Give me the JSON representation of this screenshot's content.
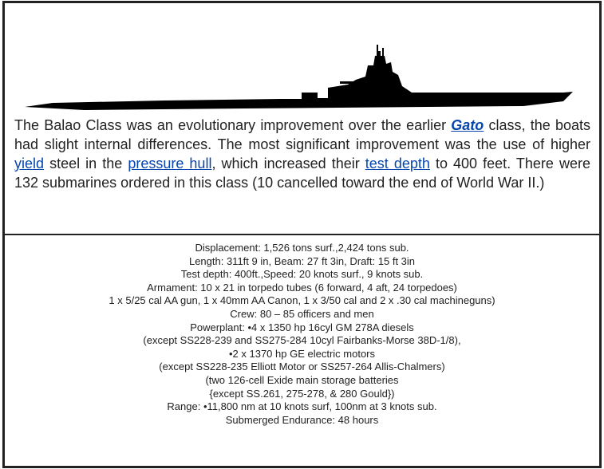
{
  "description": [
    "The Balao Class was an evolutionary improvement over the earlier ",
    "Gato",
    " class, the boats had slight internal differences. The most significant improvement was the use of higher ",
    "yield",
    " steel in the ",
    "pressure hull",
    ", which increased their ",
    "test depth",
    " to 400 feet. There were 132 submarines ordered in this class (10 cancelled toward the end of World War II.)"
  ],
  "specs": [
    "Displacement: 1,526 tons surf.,2,424 tons sub.",
    "Length: 311ft 9 in, Beam: 27 ft 3in, Draft: 15 ft 3in",
    "Test depth: 400ft.,Speed: 20 knots surf., 9 knots sub.",
    "Armament: 10 x 21 in torpedo tubes (6 forward, 4 aft, 24 torpedoes)",
    "1 x 5/25 cal AA gun, 1 x 40mm AA Canon, 1 x 3/50 cal and 2 x .30 cal machineguns)",
    "Crew: 80 – 85 officers and men",
    "Powerplant: •4 x 1350 hp 16cyl GM 278A diesels",
    "(except SS228-239 and SS275-284 10cyl Fairbanks-Morse 38D-1/8),",
    "•2 x 1370 hp GE electric motors",
    "(except SS228-235 Elliott Motor or SS257-264 Allis-Chalmers)",
    "(two 126-cell Exide main storage batteries",
    "{except SS.261, 275-278, & 280 Gould})",
    "Range: •11,800 nm at 10 knots surf, 100nm at 3 knots sub.",
    "Submerged Endurance: 48 hours"
  ]
}
